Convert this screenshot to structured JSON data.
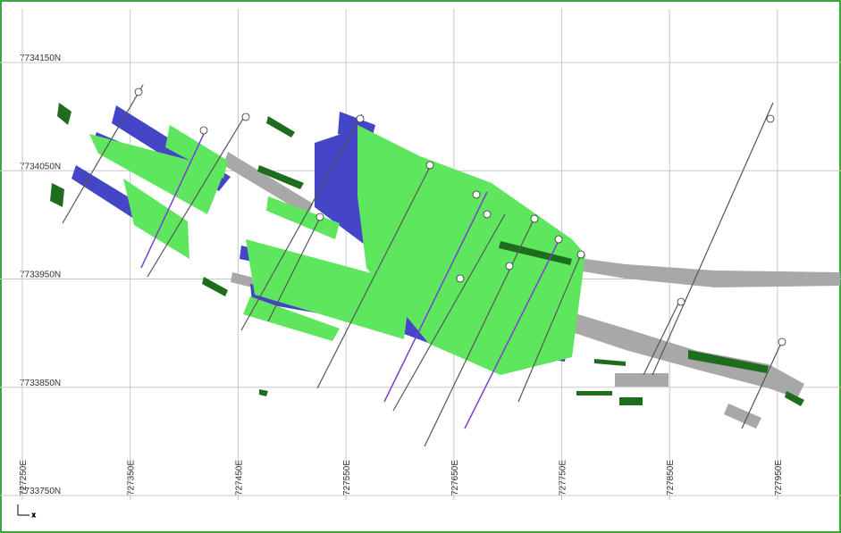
{
  "map": {
    "northings": [
      "7734150N",
      "7734050N",
      "7733950N",
      "7733850N",
      "7733750N"
    ],
    "eastings": [
      "727250E",
      "727350E",
      "727450E",
      "727550E",
      "727650E",
      "727750E",
      "727850E",
      "727950E"
    ]
  }
}
